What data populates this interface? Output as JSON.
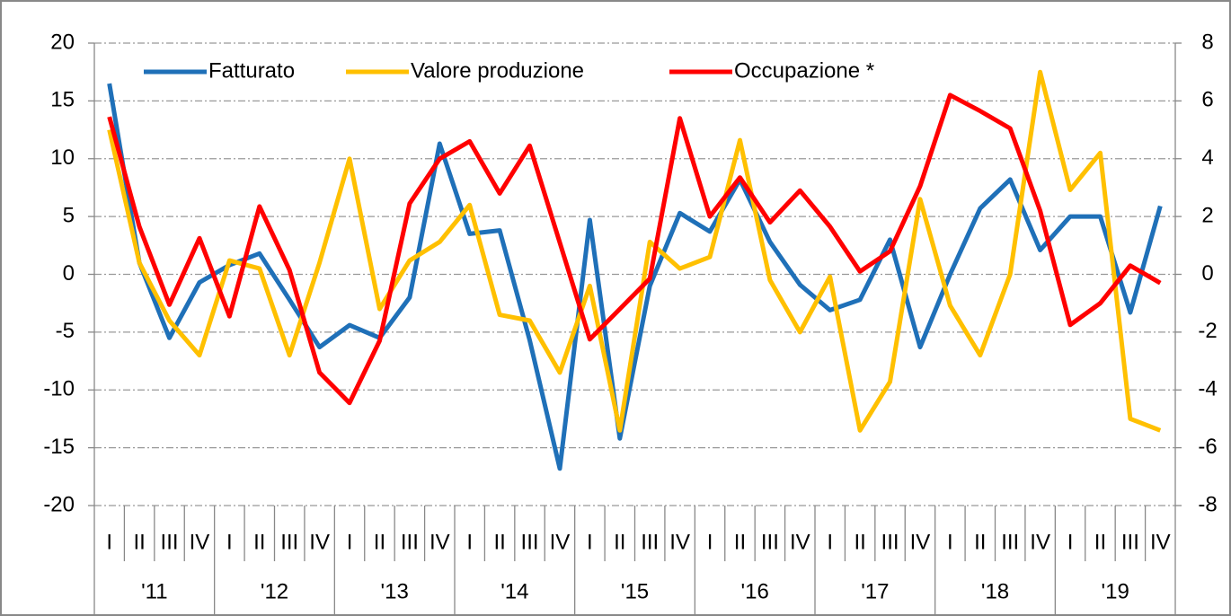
{
  "chart_data": {
    "type": "line",
    "categories": [
      "I",
      "II",
      "III",
      "IV",
      "I",
      "II",
      "III",
      "IV",
      "I",
      "II",
      "III",
      "IV",
      "I",
      "II",
      "III",
      "IV",
      "I",
      "II",
      "III",
      "IV",
      "I",
      "II",
      "III",
      "IV",
      "I",
      "II",
      "III",
      "IV",
      "I",
      "II",
      "III",
      "IV",
      "I",
      "II",
      "III",
      "IV"
    ],
    "years": [
      "'11",
      "'12",
      "'13",
      "'14",
      "'15",
      "'16",
      "'17",
      "'18",
      "'19"
    ],
    "series": [
      {
        "name": "Fatturato",
        "color": "#1f70b8",
        "values": [
          16.5,
          1.0,
          -5.5,
          -0.7,
          0.8,
          1.8,
          -2.2,
          -6.3,
          -4.4,
          -5.5,
          -2.0,
          11.3,
          3.5,
          3.8,
          -5.7,
          -16.8,
          4.7,
          -14.2,
          -1.0,
          5.3,
          3.7,
          8.2,
          2.8,
          -0.9,
          -3.1,
          -2.2,
          3.0,
          -6.3,
          0.0,
          5.7,
          8.2,
          2.1,
          5.0,
          5.0,
          -3.3,
          5.9
        ]
      },
      {
        "name": "Valore produzione",
        "color": "#ffc000",
        "values": [
          12.5,
          1.0,
          -4.0,
          -7.0,
          1.2,
          0.5,
          -7.0,
          1.0,
          10.0,
          -3.0,
          1.2,
          2.8,
          6.0,
          -3.5,
          -4.0,
          -8.5,
          -1.0,
          -13.5,
          2.8,
          0.5,
          1.5,
          11.6,
          -0.5,
          -5.0,
          -0.2,
          -13.5,
          -9.3,
          6.5,
          -2.7,
          -7.0,
          0.0,
          17.5,
          7.3,
          10.5,
          -12.5,
          -13.5
        ]
      },
      {
        "name": "Occupazione *",
        "color": "#ff0000",
        "axis": "y2",
        "values": [
          5.45,
          1.65,
          -1.05,
          1.25,
          -1.45,
          2.35,
          0.15,
          -3.4,
          -4.45,
          -2.3,
          2.45,
          4.0,
          4.6,
          2.8,
          4.45,
          1.1,
          -2.25,
          -1.2,
          -0.15,
          5.4,
          2.0,
          3.35,
          1.8,
          2.9,
          1.65,
          0.1,
          0.8,
          3.05,
          6.2,
          5.65,
          5.05,
          2.2,
          -1.75,
          -1.0,
          0.3,
          -0.3
        ]
      }
    ],
    "ylim": [
      -20,
      20
    ],
    "yticks": [
      -20,
      -15,
      -10,
      -5,
      0,
      5,
      10,
      15,
      20
    ],
    "y2lim": [
      -8,
      8
    ],
    "y2ticks": [
      -8,
      -6,
      -4,
      -2,
      0,
      2,
      4,
      6,
      8
    ],
    "grid": true,
    "legend": "top-left"
  }
}
